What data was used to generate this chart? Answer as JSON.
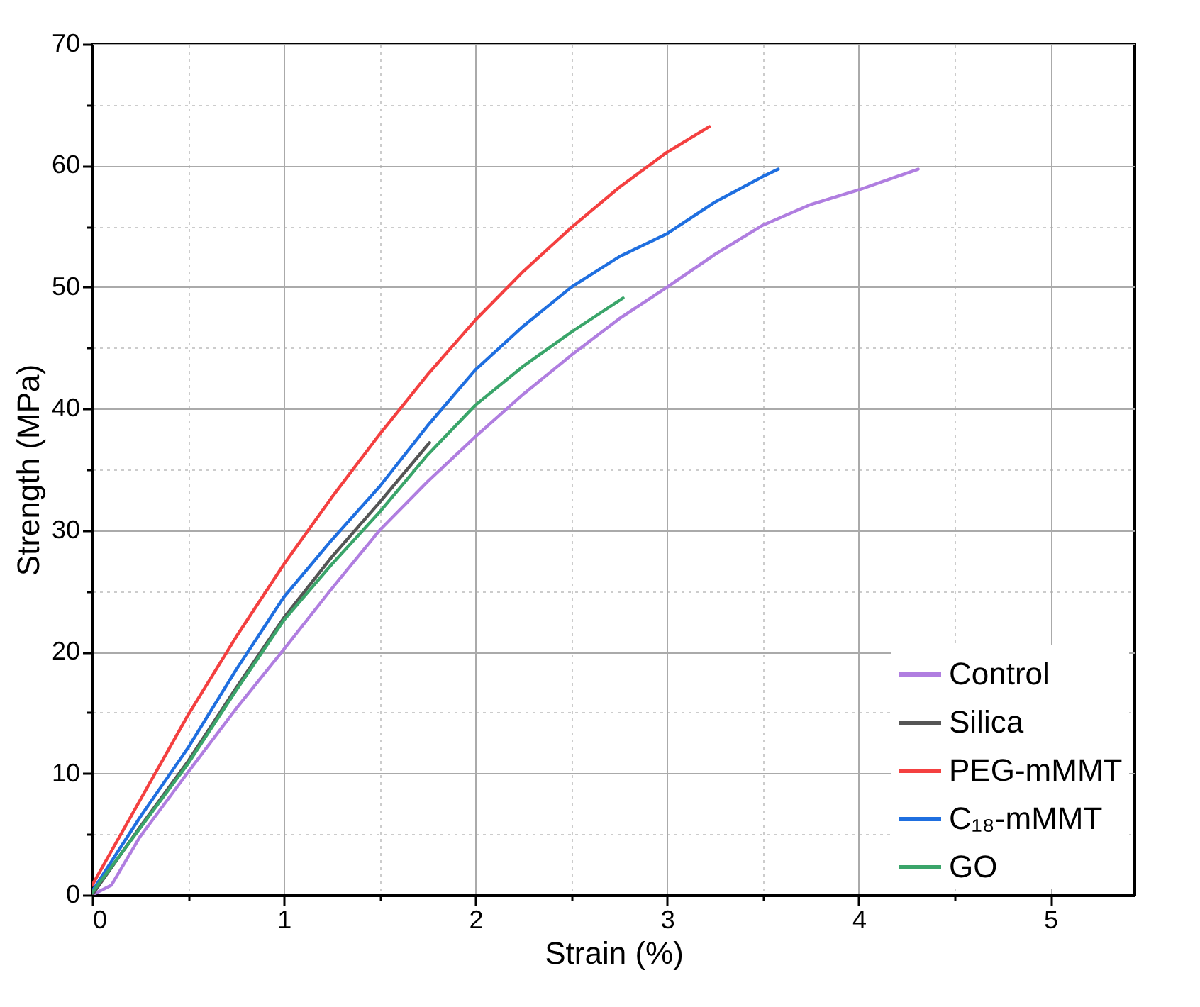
{
  "chart_data": {
    "type": "line",
    "xlabel": "Strain (%)",
    "ylabel": "Strength (MPa)",
    "xlim": [
      0,
      5.44
    ],
    "ylim": [
      0,
      70
    ],
    "xticks": [
      0,
      {
        "value": 0.5,
        "label": null
      },
      1,
      {
        "value": 1.5,
        "label": null
      },
      2,
      {
        "value": 2.5,
        "label": null
      },
      3,
      {
        "value": 3.5,
        "label": null
      },
      4,
      {
        "value": 4.5,
        "label": null
      },
      5
    ],
    "yticks": [
      0,
      {
        "value": 5,
        "label": null
      },
      10,
      {
        "value": 15,
        "label": null
      },
      20,
      {
        "value": 25,
        "label": null
      },
      30,
      {
        "value": 35,
        "label": null
      },
      40,
      {
        "value": 45,
        "label": null
      },
      50,
      {
        "value": 55,
        "label": null
      },
      60,
      {
        "value": 65,
        "label": null
      },
      70
    ],
    "grid": true,
    "legend": "bottom right",
    "marker": "none",
    "line_style": "solid",
    "series": [
      {
        "name": "Control",
        "color": "#b07ee0",
        "x": [
          0,
          0.1,
          0.25,
          0.5,
          0.75,
          1,
          1.25,
          1.5,
          1.75,
          2,
          2.25,
          2.5,
          2.75,
          3,
          3.25,
          3.5,
          3.75,
          4,
          4.31
        ],
        "values": [
          0,
          0.8,
          4.8,
          10.1,
          15.3,
          20.2,
          25.2,
          30,
          34,
          37.7,
          41.2,
          44.4,
          47.4,
          50,
          52.7,
          55.1,
          56.8,
          58,
          59.7
        ]
      },
      {
        "name": "Silica",
        "color": "#555555",
        "x": [
          0,
          0.25,
          0.5,
          0.75,
          1,
          1.25,
          1.5,
          1.76
        ],
        "values": [
          0,
          5.6,
          11,
          17,
          22.8,
          27.8,
          32.3,
          37.2
        ]
      },
      {
        "name": "PEG-mMMT",
        "color": "#f44040",
        "x": [
          0,
          0.25,
          0.5,
          0.75,
          1,
          1.25,
          1.5,
          1.75,
          2,
          2.25,
          2.5,
          2.75,
          3,
          3.22
        ],
        "values": [
          0.8,
          7.8,
          14.8,
          21.2,
          27.2,
          32.7,
          37.9,
          42.8,
          47.3,
          51.3,
          54.9,
          58.2,
          61.1,
          63.2
        ]
      },
      {
        "name": "C₁₈-mMMT",
        "color": "#1f6fe0",
        "x": [
          0,
          0.25,
          0.5,
          0.75,
          1,
          1.25,
          1.5,
          1.75,
          2,
          2.25,
          2.5,
          2.75,
          3,
          3.25,
          3.5,
          3.58
        ],
        "values": [
          0.3,
          6.4,
          12.1,
          18.5,
          24.5,
          29.2,
          33.6,
          38.6,
          43.2,
          46.8,
          50,
          52.5,
          54.4,
          57,
          59.1,
          59.7
        ]
      },
      {
        "name": "GO",
        "color": "#3aa56a",
        "x": [
          0,
          0.25,
          0.5,
          0.75,
          1,
          1.25,
          1.5,
          1.75,
          2,
          2.25,
          2.5,
          2.77
        ],
        "values": [
          0.2,
          5.5,
          10.8,
          16.8,
          22.6,
          27.2,
          31.5,
          36.2,
          40.3,
          43.5,
          46.3,
          49.1
        ]
      }
    ]
  }
}
